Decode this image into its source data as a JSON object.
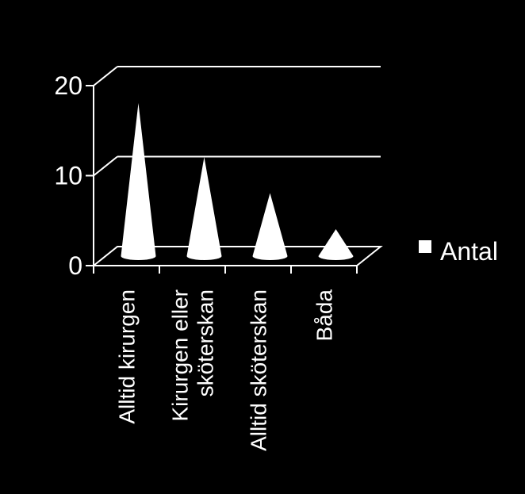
{
  "chart_data": {
    "type": "bar",
    "shape": "3d-cone",
    "categories": [
      "Alltid kirurgen",
      "Kirurgen eller sköterskan",
      "Alltid sköterskan",
      "Båda"
    ],
    "category_lines": [
      [
        "Alltid kirurgen"
      ],
      [
        "Kirurgen eller",
        "sköterskan"
      ],
      [
        "Alltid sköterskan"
      ],
      [
        "Båda"
      ]
    ],
    "series": [
      {
        "name": "Antal",
        "values": [
          17,
          11,
          7,
          3
        ]
      }
    ],
    "ylim": [
      0,
      20
    ],
    "yticks": [
      "0",
      "10",
      "20"
    ],
    "grid": true,
    "legend": "right",
    "colors": {
      "background": "#000000",
      "foreground": "#ffffff",
      "cone": "#ffffff"
    }
  }
}
